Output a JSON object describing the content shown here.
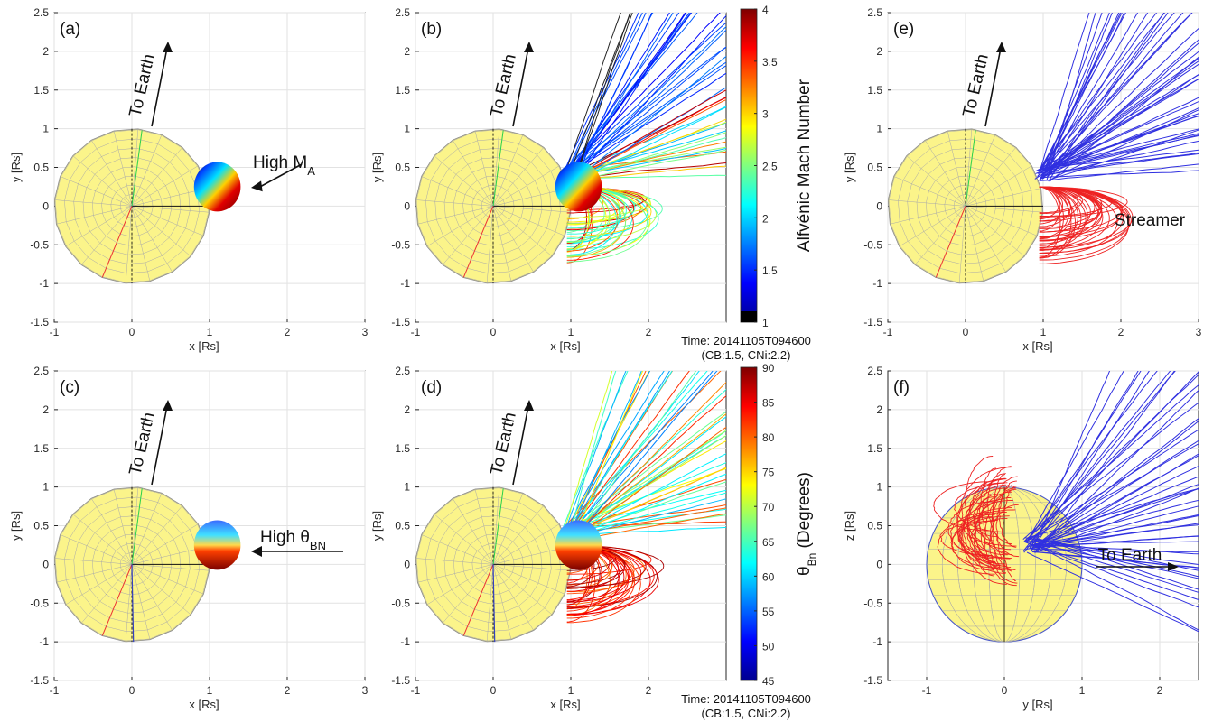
{
  "chart_data": [
    {
      "panel_label": "(a)",
      "type": "scatter",
      "xlabel": "x [Rs]",
      "ylabel": "y [Rs]",
      "xlim": [
        -1,
        3
      ],
      "ylim": [
        -1.5,
        2.5
      ],
      "xticks": [
        "-1",
        "0",
        "1",
        "2",
        "3"
      ],
      "yticks": [
        "-1.5",
        "-1",
        "-0.5",
        "0",
        "0.5",
        "1",
        "1.5",
        "2",
        "2.5"
      ],
      "grid": true,
      "annotations": [
        {
          "text": "To Earth"
        },
        {
          "text": "High M",
          "sub": "A"
        }
      ],
      "colored_sphere_center": [
        1.1,
        0.25
      ]
    },
    {
      "panel_label": "(b)",
      "type": "line",
      "xlabel": "x [Rs]",
      "ylabel": "y [Rs]",
      "xlim": [
        -1,
        3
      ],
      "ylim": [
        -1.5,
        2.5
      ],
      "xticks": [
        "-1",
        "0",
        "1",
        "2"
      ],
      "yticks": [
        "-1.5",
        "-1",
        "-0.5",
        "0",
        "0.5",
        "1",
        "1.5",
        "2",
        "2.5"
      ],
      "grid": true,
      "annotations": [
        {
          "text": "To Earth"
        }
      ],
      "colorbar": {
        "label": "Alfvénic Mach Number",
        "min": 1,
        "max": 4,
        "ticks": [
          "1",
          "1.5",
          "2",
          "2.5",
          "3",
          "3.5",
          "4"
        ]
      },
      "footnote": [
        "Time: 20141105T094600",
        "(CB:1.5, CNi:2.2)"
      ]
    },
    {
      "panel_label": "(e)",
      "type": "line",
      "xlabel": "x [Rs]",
      "ylabel": "y [Rs]",
      "xlim": [
        -1,
        3
      ],
      "ylim": [
        -1.5,
        2.5
      ],
      "xticks": [
        "-1",
        "0",
        "1",
        "2",
        "3"
      ],
      "yticks": [
        "-1.5",
        "-1",
        "-0.5",
        "0",
        "0.5",
        "1",
        "1.5",
        "2",
        "2.5"
      ],
      "grid": true,
      "annotations": [
        {
          "text": "To Earth"
        },
        {
          "text": "Streamer"
        }
      ],
      "series_colors": [
        "#2a2ae0",
        "#ee2222"
      ]
    },
    {
      "panel_label": "(c)",
      "type": "scatter",
      "xlabel": "x [Rs]",
      "ylabel": "y [Rs]",
      "xlim": [
        -1,
        3
      ],
      "ylim": [
        -1.5,
        2.5
      ],
      "xticks": [
        "-1",
        "0",
        "1",
        "2",
        "3"
      ],
      "yticks": [
        "-1.5",
        "-1",
        "-0.5",
        "0",
        "0.5",
        "1",
        "1.5",
        "2",
        "2.5"
      ],
      "grid": true,
      "annotations": [
        {
          "text": "To Earth"
        },
        {
          "text": "High θ",
          "sub": "BN"
        }
      ],
      "colored_sphere_center": [
        1.1,
        0.25
      ]
    },
    {
      "panel_label": "(d)",
      "type": "line",
      "xlabel": "x [Rs]",
      "ylabel": "y [Rs]",
      "xlim": [
        -1,
        3
      ],
      "ylim": [
        -1.5,
        2.5
      ],
      "xticks": [
        "-1",
        "0",
        "1",
        "2"
      ],
      "yticks": [
        "-1.5",
        "-1",
        "-0.5",
        "0",
        "0.5",
        "1",
        "1.5",
        "2",
        "2.5"
      ],
      "grid": true,
      "annotations": [
        {
          "text": "To Earth"
        }
      ],
      "colorbar": {
        "label": "θ",
        "sub": "Bn",
        "label_rest": "(Degrees)",
        "min": 45,
        "max": 90,
        "ticks": [
          "45",
          "50",
          "55",
          "60",
          "65",
          "70",
          "75",
          "80",
          "85",
          "90"
        ]
      },
      "footnote": [
        "Time: 20141105T094600",
        "(CB:1.5, CNi:2.2)"
      ]
    },
    {
      "panel_label": "(f)",
      "type": "line",
      "xlabel": "y [Rs]",
      "ylabel": "z [Rs]",
      "xlim": [
        -1.5,
        2.5
      ],
      "ylim": [
        -1.5,
        2.5
      ],
      "xticks": [
        "-1",
        "0",
        "1",
        "2"
      ],
      "yticks": [
        "-1.5",
        "-1",
        "-0.5",
        "0",
        "0.5",
        "1",
        "1.5",
        "2",
        "2.5"
      ],
      "grid": true,
      "annotations": [
        {
          "text": "To Earth"
        }
      ],
      "series_colors": [
        "#2a2ae0",
        "#ee2222"
      ]
    }
  ]
}
